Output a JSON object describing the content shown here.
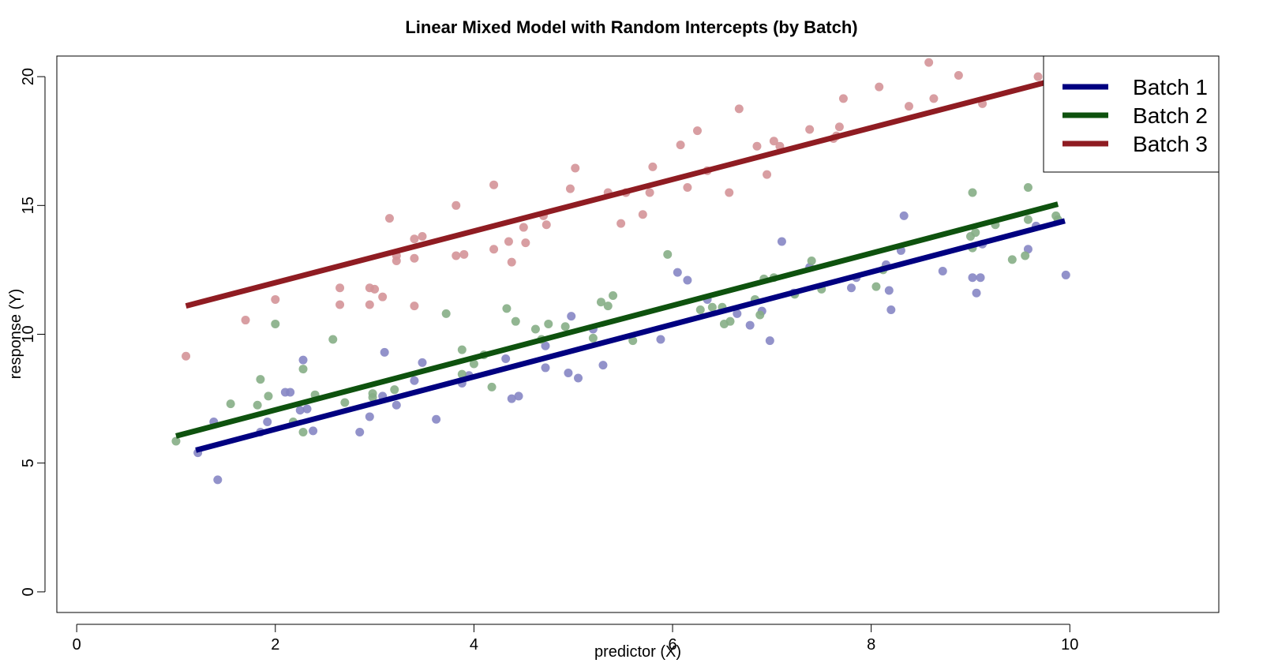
{
  "chart_data": {
    "type": "scatter",
    "title": "Linear Mixed Model with Random Intercepts (by Batch)",
    "xlabel": "predictor (X)",
    "ylabel": "response (Y)",
    "xlim": [
      -0.2,
      11.5
    ],
    "ylim": [
      -0.8,
      20.8
    ],
    "xticks": [
      "0",
      "2",
      "4",
      "6",
      "8",
      "10"
    ],
    "yticks": [
      "0",
      "5",
      "10",
      "15",
      "20"
    ],
    "legend_position": "top-right",
    "grid": false,
    "series": [
      {
        "name": "Batch 1",
        "color": "#000080",
        "point_color": "#8686c4",
        "line": [
          [
            1.2,
            5.5
          ],
          [
            9.95,
            14.4
          ]
        ],
        "points": [
          [
            1.22,
            5.4
          ],
          [
            1.38,
            6.6
          ],
          [
            1.42,
            4.35
          ],
          [
            1.85,
            6.2
          ],
          [
            1.92,
            6.6
          ],
          [
            2.1,
            7.75
          ],
          [
            2.15,
            7.75
          ],
          [
            2.25,
            7.05
          ],
          [
            2.28,
            9.0
          ],
          [
            2.32,
            7.1
          ],
          [
            2.38,
            6.25
          ],
          [
            2.85,
            6.2
          ],
          [
            2.95,
            6.8
          ],
          [
            3.08,
            7.6
          ],
          [
            3.1,
            9.3
          ],
          [
            3.22,
            7.25
          ],
          [
            3.4,
            8.2
          ],
          [
            3.48,
            8.9
          ],
          [
            3.62,
            6.7
          ],
          [
            3.88,
            8.1
          ],
          [
            3.95,
            8.4
          ],
          [
            4.32,
            9.05
          ],
          [
            4.38,
            7.5
          ],
          [
            4.45,
            7.6
          ],
          [
            4.72,
            8.7
          ],
          [
            4.72,
            9.55
          ],
          [
            4.95,
            8.5
          ],
          [
            4.98,
            10.7
          ],
          [
            5.05,
            8.3
          ],
          [
            5.2,
            10.2
          ],
          [
            5.3,
            8.8
          ],
          [
            5.88,
            9.8
          ],
          [
            6.05,
            12.4
          ],
          [
            6.15,
            12.1
          ],
          [
            6.35,
            11.35
          ],
          [
            6.65,
            10.8
          ],
          [
            6.78,
            10.35
          ],
          [
            6.9,
            10.9
          ],
          [
            6.98,
            9.75
          ],
          [
            7.1,
            13.6
          ],
          [
            7.22,
            11.6
          ],
          [
            7.38,
            12.6
          ],
          [
            7.8,
            11.8
          ],
          [
            7.85,
            12.2
          ],
          [
            8.15,
            12.7
          ],
          [
            8.18,
            11.7
          ],
          [
            8.2,
            10.95
          ],
          [
            8.3,
            13.25
          ],
          [
            8.33,
            14.6
          ],
          [
            8.72,
            12.45
          ],
          [
            9.02,
            12.2
          ],
          [
            9.06,
            11.6
          ],
          [
            9.1,
            12.2
          ],
          [
            9.12,
            13.5
          ],
          [
            9.58,
            13.3
          ],
          [
            9.66,
            14.2
          ],
          [
            9.96,
            12.3
          ]
        ]
      },
      {
        "name": "Batch 2",
        "color": "#0e520e",
        "point_color": "#86ae86",
        "line": [
          [
            1.0,
            6.05
          ],
          [
            9.88,
            15.05
          ]
        ],
        "points": [
          [
            1.0,
            5.85
          ],
          [
            1.55,
            7.3
          ],
          [
            1.82,
            7.25
          ],
          [
            1.85,
            8.25
          ],
          [
            1.93,
            7.6
          ],
          [
            2.0,
            10.4
          ],
          [
            2.18,
            6.6
          ],
          [
            2.28,
            8.65
          ],
          [
            2.28,
            6.2
          ],
          [
            2.4,
            7.65
          ],
          [
            2.58,
            9.8
          ],
          [
            2.7,
            7.35
          ],
          [
            2.98,
            7.55
          ],
          [
            2.98,
            7.7
          ],
          [
            3.2,
            7.85
          ],
          [
            3.72,
            10.8
          ],
          [
            3.88,
            8.45
          ],
          [
            3.88,
            9.4
          ],
          [
            4.0,
            8.85
          ],
          [
            4.1,
            9.2
          ],
          [
            4.18,
            7.95
          ],
          [
            4.33,
            11.0
          ],
          [
            4.42,
            10.5
          ],
          [
            4.62,
            10.2
          ],
          [
            4.68,
            9.8
          ],
          [
            4.75,
            10.4
          ],
          [
            4.92,
            10.3
          ],
          [
            5.2,
            9.85
          ],
          [
            5.28,
            11.25
          ],
          [
            5.35,
            11.1
          ],
          [
            5.4,
            11.5
          ],
          [
            5.6,
            9.75
          ],
          [
            5.95,
            13.1
          ],
          [
            6.28,
            10.95
          ],
          [
            6.4,
            11.05
          ],
          [
            6.5,
            11.05
          ],
          [
            6.52,
            10.4
          ],
          [
            6.58,
            10.5
          ],
          [
            6.83,
            11.35
          ],
          [
            6.88,
            10.75
          ],
          [
            6.92,
            12.15
          ],
          [
            7.02,
            12.2
          ],
          [
            7.23,
            11.55
          ],
          [
            7.4,
            12.85
          ],
          [
            7.5,
            11.75
          ],
          [
            8.05,
            11.85
          ],
          [
            8.12,
            12.5
          ],
          [
            9.0,
            13.8
          ],
          [
            9.02,
            13.35
          ],
          [
            9.02,
            15.5
          ],
          [
            9.05,
            13.95
          ],
          [
            9.25,
            14.25
          ],
          [
            9.42,
            12.9
          ],
          [
            9.55,
            13.05
          ],
          [
            9.58,
            15.7
          ],
          [
            9.58,
            14.45
          ],
          [
            9.86,
            14.6
          ],
          [
            9.88,
            14.45
          ]
        ]
      },
      {
        "name": "Batch 3",
        "color": "#8f1c22",
        "point_color": "#d49498",
        "line": [
          [
            1.1,
            11.1
          ],
          [
            9.88,
            19.9
          ]
        ],
        "points": [
          [
            1.1,
            9.15
          ],
          [
            1.7,
            10.55
          ],
          [
            2.0,
            11.35
          ],
          [
            2.65,
            11.8
          ],
          [
            2.65,
            11.15
          ],
          [
            2.95,
            11.8
          ],
          [
            2.95,
            11.15
          ],
          [
            3.0,
            11.75
          ],
          [
            3.08,
            11.45
          ],
          [
            3.15,
            14.5
          ],
          [
            3.22,
            13.05
          ],
          [
            3.22,
            12.85
          ],
          [
            3.4,
            13.7
          ],
          [
            3.4,
            12.95
          ],
          [
            3.4,
            11.1
          ],
          [
            3.48,
            13.8
          ],
          [
            3.82,
            15.0
          ],
          [
            3.82,
            13.05
          ],
          [
            3.9,
            13.1
          ],
          [
            4.2,
            15.8
          ],
          [
            4.2,
            13.3
          ],
          [
            4.35,
            13.6
          ],
          [
            4.38,
            12.8
          ],
          [
            4.5,
            14.15
          ],
          [
            4.52,
            13.55
          ],
          [
            4.7,
            14.6
          ],
          [
            4.73,
            14.25
          ],
          [
            4.97,
            15.65
          ],
          [
            5.02,
            16.45
          ],
          [
            5.35,
            15.5
          ],
          [
            5.48,
            14.3
          ],
          [
            5.53,
            15.5
          ],
          [
            5.7,
            14.65
          ],
          [
            5.77,
            15.5
          ],
          [
            5.8,
            16.5
          ],
          [
            6.08,
            17.35
          ],
          [
            6.15,
            15.7
          ],
          [
            6.25,
            17.9
          ],
          [
            6.35,
            16.35
          ],
          [
            6.57,
            15.5
          ],
          [
            6.67,
            18.75
          ],
          [
            6.85,
            17.3
          ],
          [
            6.95,
            16.2
          ],
          [
            7.02,
            17.5
          ],
          [
            7.08,
            17.3
          ],
          [
            7.38,
            17.95
          ],
          [
            7.62,
            17.6
          ],
          [
            7.65,
            17.7
          ],
          [
            7.68,
            18.05
          ],
          [
            7.72,
            19.15
          ],
          [
            8.08,
            19.6
          ],
          [
            8.38,
            18.85
          ],
          [
            8.58,
            20.55
          ],
          [
            8.63,
            19.15
          ],
          [
            8.88,
            20.05
          ],
          [
            9.12,
            18.95
          ],
          [
            9.68,
            20.0
          ]
        ]
      }
    ]
  }
}
